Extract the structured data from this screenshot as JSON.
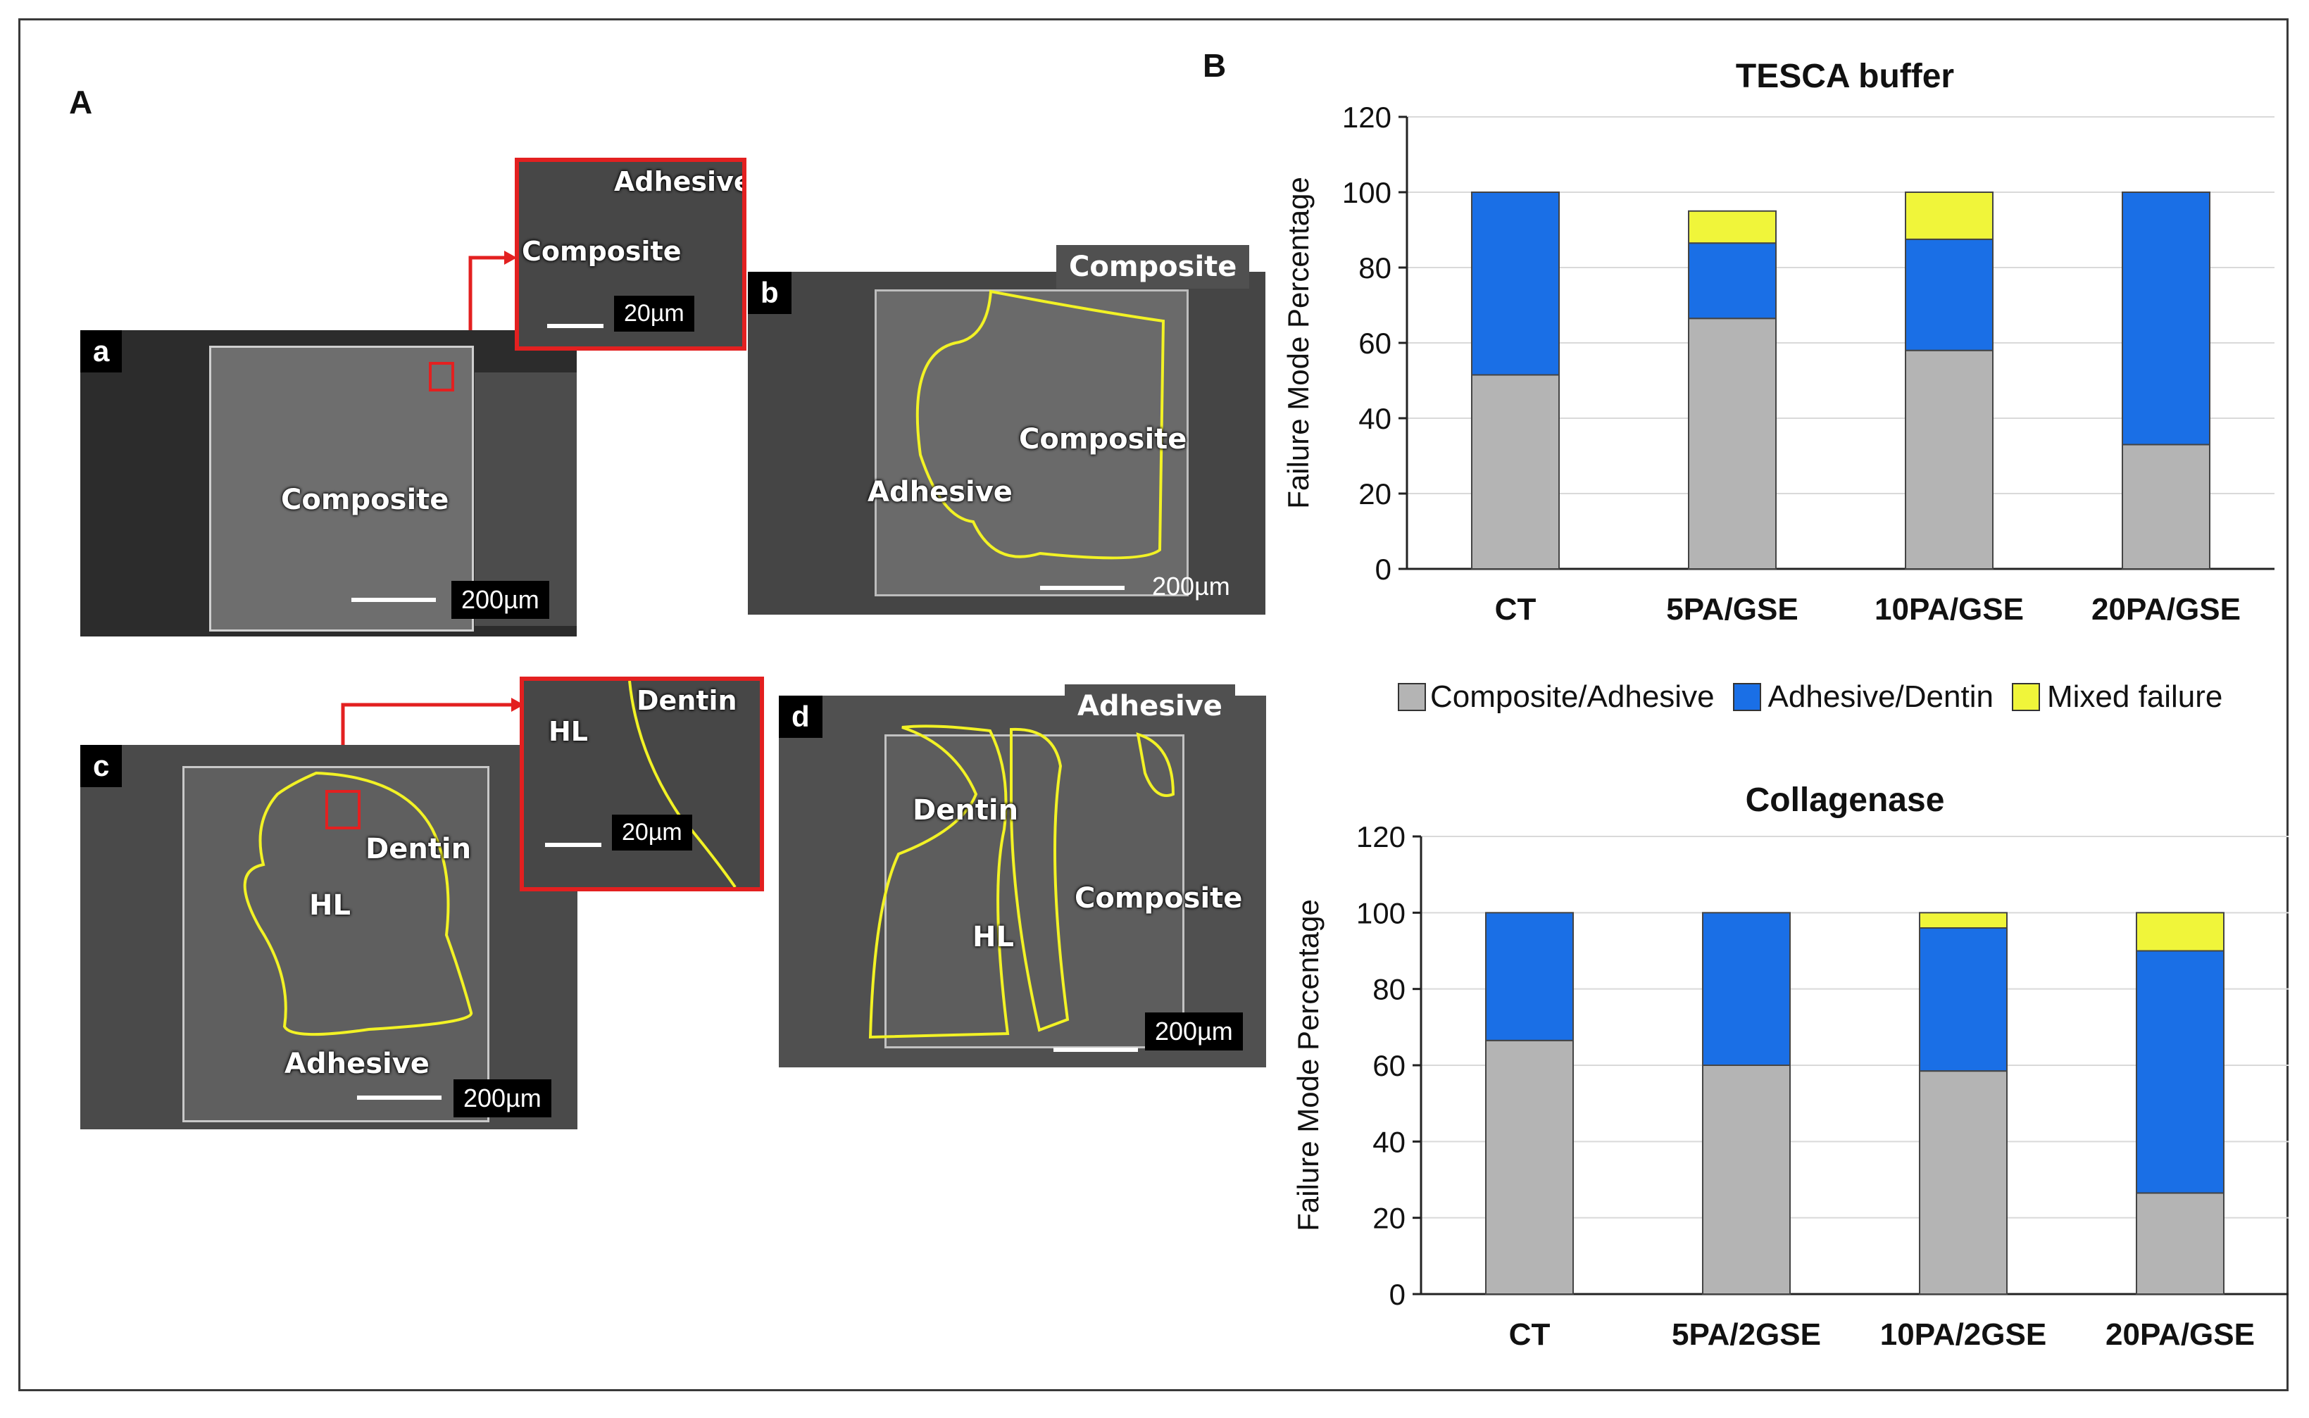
{
  "panels": {
    "A": "A",
    "B": "B"
  },
  "micrographs": {
    "a": {
      "letter": "a",
      "label": "Composite",
      "scale": "200µm",
      "inset": {
        "label1": "Adhesive",
        "label2": "Composite",
        "scale": "20µm"
      }
    },
    "b": {
      "letter": "b",
      "tag": "Composite",
      "label1": "Composite",
      "label2": "Adhesive",
      "scale": "200µm"
    },
    "c": {
      "letter": "c",
      "label1": "Dentin",
      "label2": "HL",
      "label3": "Adhesive",
      "scale": "200µm",
      "inset": {
        "label1": "Dentin",
        "label2": "HL",
        "scale": "20µm"
      }
    },
    "d": {
      "letter": "d",
      "tag": "Adhesive",
      "label1": "Dentin",
      "label2": "HL",
      "label3": "Composite",
      "scale": "200µm"
    }
  },
  "legend": [
    {
      "label": "Composite/Adhesive",
      "color": "#b4b4b4"
    },
    {
      "label": "Adhesive/Dentin",
      "color": "#1a6fe6"
    },
    {
      "label": "Mixed failure",
      "color": "#f0f53a"
    }
  ],
  "chart_data": [
    {
      "type": "bar",
      "stacked": true,
      "title": "TESCA buffer",
      "ylabel": "Failure Mode Percentage",
      "xlabel": "",
      "ylim": [
        0,
        120
      ],
      "yticks": [
        0,
        20,
        40,
        60,
        80,
        100,
        120
      ],
      "categories": [
        "CT",
        "5PA/GSE",
        "10PA/GSE",
        "20PA/GSE"
      ],
      "series": [
        {
          "name": "Composite/Adhesive",
          "values": [
            51.5,
            66.5,
            58,
            33
          ],
          "color": "#b4b4b4"
        },
        {
          "name": "Adhesive/Dentin",
          "values": [
            48.5,
            20,
            29.5,
            67
          ],
          "color": "#1a6fe6"
        },
        {
          "name": "Mixed failure",
          "values": [
            0,
            8.5,
            12.5,
            0
          ],
          "color": "#f0f53a"
        }
      ]
    },
    {
      "type": "bar",
      "stacked": true,
      "title": "Collagenase",
      "ylabel": "Failure Mode Percentage",
      "xlabel": "",
      "ylim": [
        0,
        120
      ],
      "yticks": [
        0,
        20,
        40,
        60,
        80,
        100,
        120
      ],
      "categories": [
        "CT",
        "5PA/2GSE",
        "10PA/2GSE",
        "20PA/GSE"
      ],
      "series": [
        {
          "name": "Composite/Adhesive",
          "values": [
            66.5,
            60,
            58.5,
            26.5
          ],
          "color": "#b4b4b4"
        },
        {
          "name": "Adhesive/Dentin",
          "values": [
            33.5,
            40,
            37.5,
            63.5
          ],
          "color": "#1a6fe6"
        },
        {
          "name": "Mixed failure",
          "values": [
            0,
            0,
            4,
            10
          ],
          "color": "#f0f53a"
        }
      ]
    }
  ]
}
